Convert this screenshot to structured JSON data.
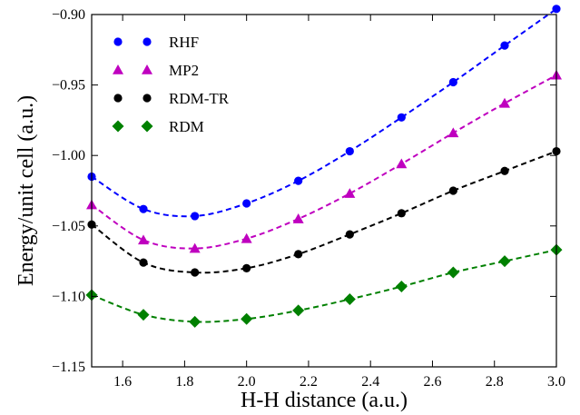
{
  "chart_data": {
    "type": "scatter",
    "title": "",
    "xlabel": "H-H distance (a.u.)",
    "ylabel": "Energy/unit cell (a.u.)",
    "xlim": [
      1.5,
      3.0
    ],
    "ylim": [
      -1.15,
      -0.9
    ],
    "xticks": [
      1.6,
      1.8,
      2.0,
      2.2,
      2.4,
      2.6,
      2.8,
      3.0
    ],
    "xtick_labels": [
      "1.6",
      "1.8",
      "2.0",
      "2.2",
      "2.4",
      "2.6",
      "2.8",
      "3.0"
    ],
    "yticks": [
      -1.15,
      -1.1,
      -1.05,
      -1.0,
      -0.95,
      -0.9
    ],
    "ytick_labels": [
      "−1.15",
      "−1.10",
      "−1.05",
      "−1.00",
      "−0.95",
      "−0.90"
    ],
    "grid": false,
    "legend_position": "top-left",
    "x": [
      1.5,
      1.667,
      1.833,
      2.0,
      2.167,
      2.333,
      2.5,
      2.667,
      2.833,
      3.0
    ],
    "series": [
      {
        "name": "RHF",
        "marker": "circle",
        "color": "#0000ff",
        "values": [
          -1.015,
          -1.038,
          -1.043,
          -1.034,
          -1.018,
          -0.997,
          -0.973,
          -0.948,
          -0.922,
          -0.896
        ]
      },
      {
        "name": "MP2",
        "marker": "triangle",
        "color": "#bf00bf",
        "values": [
          -1.035,
          -1.06,
          -1.066,
          -1.059,
          -1.045,
          -1.027,
          -1.006,
          -0.984,
          -0.963,
          -0.943
        ]
      },
      {
        "name": "RDM-TR",
        "marker": "circle",
        "color": "#000000",
        "values": [
          -1.049,
          -1.076,
          -1.083,
          -1.08,
          -1.07,
          -1.056,
          -1.041,
          -1.025,
          -1.011,
          -0.997
        ]
      },
      {
        "name": "RDM",
        "marker": "diamond",
        "color": "#008000",
        "values": [
          -1.099,
          -1.113,
          -1.118,
          -1.116,
          -1.11,
          -1.102,
          -1.093,
          -1.083,
          -1.075,
          -1.067
        ]
      }
    ]
  }
}
